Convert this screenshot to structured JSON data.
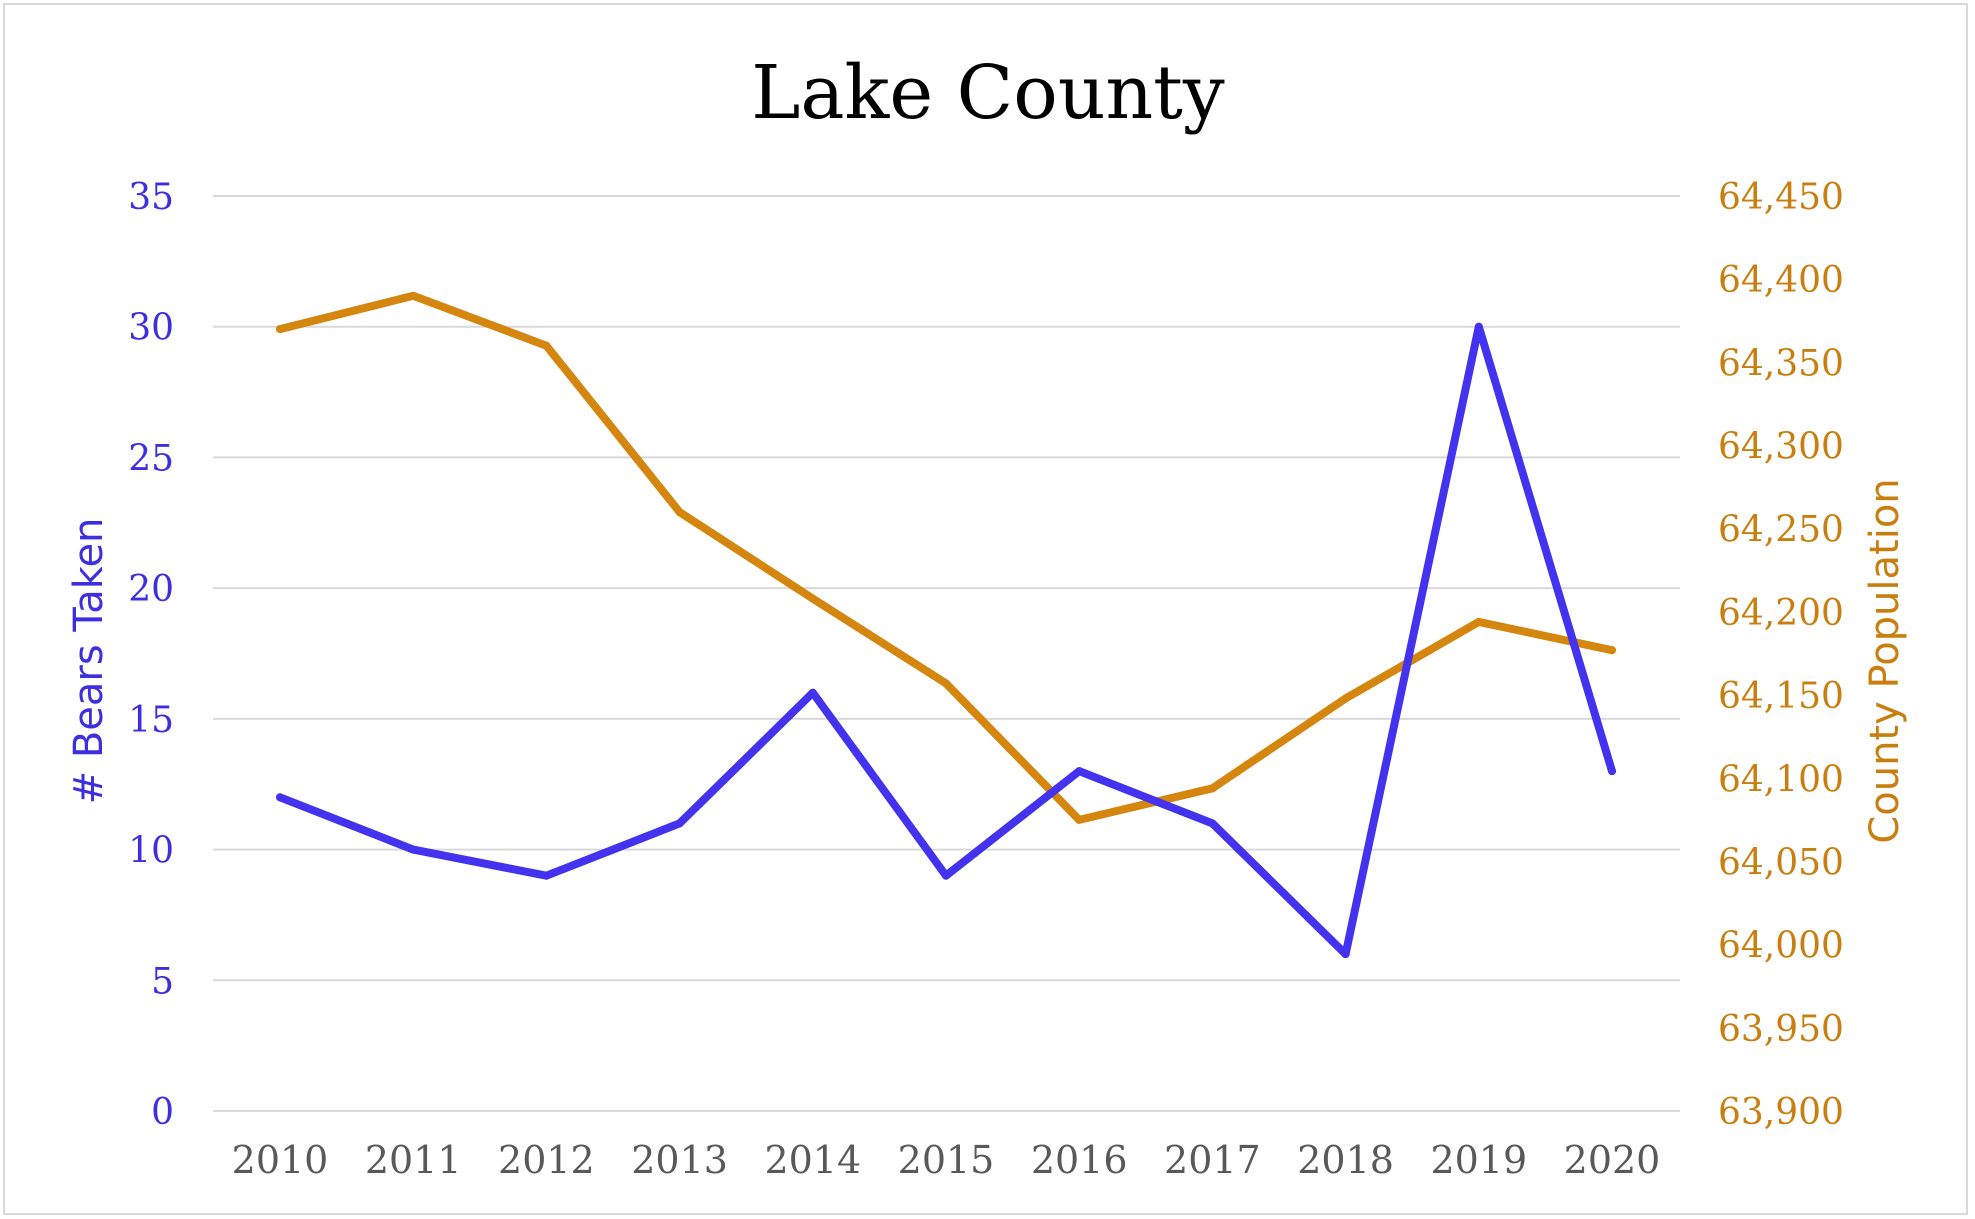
{
  "chart_data": {
    "type": "line",
    "title": "Lake County",
    "x": [
      "2010",
      "2011",
      "2012",
      "2013",
      "2014",
      "2015",
      "2016",
      "2017",
      "2018",
      "2019",
      "2020"
    ],
    "ylabel": "# Bears Taken",
    "y2label": "County Population",
    "ylim": [
      0,
      35
    ],
    "y_ticks": [
      "0",
      "5",
      "10",
      "15",
      "20",
      "25",
      "30",
      "35"
    ],
    "y2lim": [
      63900,
      64450
    ],
    "y2_ticks": [
      "63,900",
      "63,950",
      "64,000",
      "64,050",
      "64,100",
      "64,150",
      "64,200",
      "64,250",
      "64,300",
      "64,350",
      "64,400",
      "64,450"
    ],
    "grid": true,
    "legend": "none",
    "series": [
      {
        "axis": "left",
        "color": "#4433ee",
        "values": [
          12,
          10,
          9,
          11,
          16,
          9,
          13,
          11,
          6,
          30,
          13
        ]
      },
      {
        "axis": "right",
        "color": "#d4860f",
        "values": [
          64370,
          64390,
          64360,
          64260,
          64208,
          64157,
          64075,
          64094,
          64148,
          64194,
          64177
        ]
      }
    ]
  }
}
